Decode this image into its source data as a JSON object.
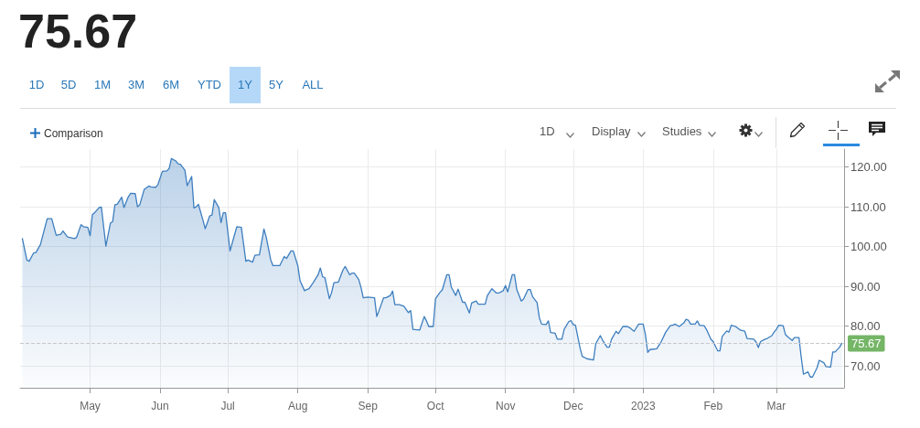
{
  "chart_data": {
    "type": "area",
    "title": "75.67",
    "annotations": [
      "1D",
      "5D",
      "1M",
      "3M",
      "6M",
      "YTD",
      "1Y",
      "5Y",
      "ALL",
      "Comparison",
      "1D",
      "Display",
      "Studies"
    ],
    "x": [
      "2022-04-01",
      "2022-04-03",
      "2022-04-04",
      "2022-04-06",
      "2022-04-07",
      "2022-04-09",
      "2022-04-12",
      "2022-04-14",
      "2022-04-16",
      "2022-04-18",
      "2022-04-19",
      "2022-04-21",
      "2022-04-22",
      "2022-04-24",
      "2022-04-25",
      "2022-04-27",
      "2022-04-28",
      "2022-04-30",
      "2022-05-01",
      "2022-05-02",
      "2022-05-03",
      "2022-05-05",
      "2022-05-06",
      "2022-05-08",
      "2022-05-10",
      "2022-05-11",
      "2022-05-12",
      "2022-05-13",
      "2022-05-15",
      "2022-05-16",
      "2022-05-18",
      "2022-05-19",
      "2022-05-21",
      "2022-05-22",
      "2022-05-23",
      "2022-05-25",
      "2022-05-27",
      "2022-05-28",
      "2022-05-30",
      "2022-05-31",
      "2022-06-01",
      "2022-06-02",
      "2022-06-04",
      "2022-06-05",
      "2022-06-06",
      "2022-06-08",
      "2022-06-09",
      "2022-06-10",
      "2022-06-12",
      "2022-06-13",
      "2022-06-15",
      "2022-06-16",
      "2022-06-17",
      "2022-06-18",
      "2022-06-20",
      "2022-06-21",
      "2022-06-23",
      "2022-06-24",
      "2022-06-25",
      "2022-06-27",
      "2022-06-28",
      "2022-06-29",
      "2022-06-30",
      "2022-07-02",
      "2022-07-04",
      "2022-07-05",
      "2022-07-07",
      "2022-07-09",
      "2022-07-10",
      "2022-07-12",
      "2022-07-13",
      "2022-07-15",
      "2022-07-17",
      "2022-07-18",
      "2022-07-20",
      "2022-07-21",
      "2022-07-24",
      "2022-07-26",
      "2022-07-27",
      "2022-07-29",
      "2022-07-30",
      "2022-08-01",
      "2022-08-02",
      "2022-08-04",
      "2022-08-05",
      "2022-08-06",
      "2022-08-08",
      "2022-08-10",
      "2022-08-11",
      "2022-08-12",
      "2022-08-13",
      "2022-08-15",
      "2022-08-16",
      "2022-08-17",
      "2022-08-19",
      "2022-08-21",
      "2022-08-22",
      "2022-08-24",
      "2022-08-25",
      "2022-08-26",
      "2022-08-28",
      "2022-08-29",
      "2022-08-30",
      "2022-09-01",
      "2022-09-04",
      "2022-09-05",
      "2022-09-06",
      "2022-09-08",
      "2022-09-09",
      "2022-09-11",
      "2022-09-12",
      "2022-09-13",
      "2022-09-15",
      "2022-09-17",
      "2022-09-19",
      "2022-09-20",
      "2022-09-21",
      "2022-09-24",
      "2022-09-26",
      "2022-09-27",
      "2022-09-28",
      "2022-09-30",
      "2022-10-01",
      "2022-10-03",
      "2022-10-04",
      "2022-10-06",
      "2022-10-07",
      "2022-10-08",
      "2022-10-10",
      "2022-10-11",
      "2022-10-13",
      "2022-10-14",
      "2022-10-16",
      "2022-10-17",
      "2022-10-19",
      "2022-10-20",
      "2022-10-23",
      "2022-10-24",
      "2022-10-26",
      "2022-10-28",
      "2022-10-29",
      "2022-10-31",
      "2022-11-01",
      "2022-11-02",
      "2022-11-04",
      "2022-11-05",
      "2022-11-06",
      "2022-11-08",
      "2022-11-09",
      "2022-11-11",
      "2022-11-12",
      "2022-11-13",
      "2022-11-15",
      "2022-11-16",
      "2022-11-17",
      "2022-11-19",
      "2022-11-20",
      "2022-11-21",
      "2022-11-23",
      "2022-11-24",
      "2022-11-26",
      "2022-11-27",
      "2022-11-29",
      "2022-11-30",
      "2022-12-01",
      "2022-12-02",
      "2022-12-04",
      "2022-12-05",
      "2022-12-07",
      "2022-12-10",
      "2022-12-11",
      "2022-12-13",
      "2022-12-14",
      "2022-12-16",
      "2022-12-17",
      "2022-12-18",
      "2022-12-20",
      "2022-12-21",
      "2022-12-23",
      "2022-12-25",
      "2022-12-26",
      "2022-12-28",
      "2022-12-30",
      "2023-01-01",
      "2023-01-02",
      "2023-01-03",
      "2023-01-04",
      "2023-01-07",
      "2023-01-09",
      "2023-01-11",
      "2023-01-13",
      "2023-01-14",
      "2023-01-15",
      "2023-01-17",
      "2023-01-19",
      "2023-01-20",
      "2023-01-21",
      "2023-01-22",
      "2023-01-24",
      "2023-01-25",
      "2023-01-26",
      "2023-01-28",
      "2023-01-29",
      "2023-01-31",
      "2023-02-01",
      "2023-02-03",
      "2023-02-04",
      "2023-02-05",
      "2023-02-07",
      "2023-02-08",
      "2023-02-09",
      "2023-02-11",
      "2023-02-13",
      "2023-02-15",
      "2023-02-16",
      "2023-02-19",
      "2023-02-20",
      "2023-02-21",
      "2023-02-22",
      "2023-02-24",
      "2023-02-25",
      "2023-02-27",
      "2023-02-28",
      "2023-03-01",
      "2023-03-02",
      "2023-03-04",
      "2023-03-05",
      "2023-03-06",
      "2023-03-08",
      "2023-03-09",
      "2023-03-11",
      "2023-03-12",
      "2023-03-13",
      "2023-03-15",
      "2023-03-16",
      "2023-03-17",
      "2023-03-19",
      "2023-03-20",
      "2023-03-22",
      "2023-03-23",
      "2023-03-25",
      "2023-03-26",
      "2023-03-27",
      "2023-03-29",
      "2023-03-30"
    ],
    "values": [
      102.0,
      96.6,
      96.3,
      98.4,
      98.5,
      100.5,
      107.0,
      107.0,
      102.8,
      103.1,
      103.9,
      102.4,
      102.3,
      102.0,
      102.3,
      105.5,
      105.0,
      104.8,
      102.7,
      108.0,
      108.5,
      109.8,
      109.9,
      100.1,
      105.9,
      106.3,
      110.5,
      110.6,
      112.4,
      109.8,
      112.6,
      113.4,
      113.3,
      110.0,
      110.5,
      114.4,
      115.2,
      115.0,
      114.9,
      115.5,
      117.2,
      118.9,
      119.0,
      119.6,
      122.1,
      121.5,
      120.8,
      120.7,
      119.2,
      115.3,
      117.6,
      109.7,
      110.0,
      110.6,
      106.6,
      104.5,
      107.7,
      107.9,
      111.8,
      109.8,
      106.0,
      108.5,
      108.5,
      98.9,
      103.0,
      105.0,
      104.8,
      96.3,
      96.6,
      96.1,
      97.8,
      97.9,
      104.4,
      102.4,
      96.7,
      95.2,
      95.2,
      97.5,
      97.0,
      98.9,
      98.9,
      95.2,
      91.4,
      88.9,
      89.2,
      89.4,
      91.1,
      92.9,
      94.6,
      92.4,
      92.2,
      86.9,
      88.5,
      90.9,
      91.1,
      94.1,
      95.0,
      92.9,
      93.3,
      93.3,
      91.7,
      89.7,
      87.1,
      87.3,
      87.1,
      82.4,
      83.9,
      87.1,
      87.1,
      87.7,
      88.8,
      85.4,
      85.4,
      85.0,
      83.4,
      83.9,
      79.2,
      79.0,
      82.4,
      81.3,
      79.9,
      79.9,
      86.9,
      88.5,
      89.1,
      92.9,
      92.9,
      89.8,
      87.7,
      89.3,
      86.0,
      86.0,
      83.3,
      85.8,
      86.3,
      85.5,
      85.5,
      87.7,
      89.4,
      88.3,
      88.3,
      88.9,
      90.2,
      88.6,
      92.9,
      92.9,
      89.2,
      86.3,
      86.8,
      89.2,
      89.2,
      87.4,
      85.9,
      82.1,
      80.5,
      80.4,
      81.3,
      78.4,
      78.2,
      76.7,
      76.7,
      79.2,
      81.1,
      81.4,
      80.4,
      80.2,
      74.6,
      72.4,
      71.8,
      71.5,
      75.6,
      77.6,
      76.5,
      74.7,
      74.7,
      76.7,
      78.7,
      78.1,
      79.9,
      79.9,
      79.6,
      78.7,
      80.5,
      80.5,
      77.8,
      73.4,
      74.1,
      74.3,
      76.1,
      78.5,
      80.1,
      80.2,
      80.5,
      79.9,
      80.8,
      81.7,
      81.5,
      80.5,
      80.5,
      81.3,
      80.2,
      80.1,
      79.2,
      76.7,
      76.1,
      73.8,
      73.8,
      77.4,
      78.8,
      78.5,
      80.2,
      79.9,
      79.0,
      78.7,
      76.9,
      76.7,
      76.0,
      74.6,
      76.1,
      76.7,
      76.9,
      77.6,
      78.5,
      79.2,
      80.2,
      80.1,
      77.9,
      77.3,
      76.4,
      77.1,
      77.1,
      72.2,
      67.9,
      68.5,
      67.2,
      67.2,
      69.5,
      71.4,
      70.8,
      69.8,
      69.7,
      73.5,
      73.5,
      74.7,
      75.67
    ],
    "color": "#3d7ebf",
    "xlim": [
      "2022-03-31",
      "2023-03-31"
    ],
    "xticks": [
      {
        "value": "2022-05-01",
        "label": "May"
      },
      {
        "value": "2022-06-01",
        "label": "Jun"
      },
      {
        "value": "2022-07-01",
        "label": "Jul"
      },
      {
        "value": "2022-08-01",
        "label": "Aug"
      },
      {
        "value": "2022-09-01",
        "label": "Sep"
      },
      {
        "value": "2022-10-01",
        "label": "Oct"
      },
      {
        "value": "2022-11-01",
        "label": "Nov"
      },
      {
        "value": "2022-12-01",
        "label": "Dec"
      },
      {
        "value": "2023-01-01",
        "label": "2023"
      },
      {
        "value": "2023-02-01",
        "label": "Feb"
      },
      {
        "value": "2023-03-01",
        "label": "Mar"
      }
    ],
    "ylim": [
      64.5,
      124.5
    ],
    "yticks": [
      {
        "value": 70,
        "label": "70.00"
      },
      {
        "value": 80,
        "label": "80.00"
      },
      {
        "value": 90,
        "label": "90.00"
      },
      {
        "value": 100,
        "label": "100.00"
      },
      {
        "value": 110,
        "label": "110.00"
      },
      {
        "value": 120,
        "label": "120.00"
      }
    ],
    "grid": true,
    "ref_lines": [
      {
        "axis": "y",
        "value": 75.67,
        "label": "75.67",
        "color": "#c8c8c8",
        "line_style": "dashed"
      }
    ]
  }
}
